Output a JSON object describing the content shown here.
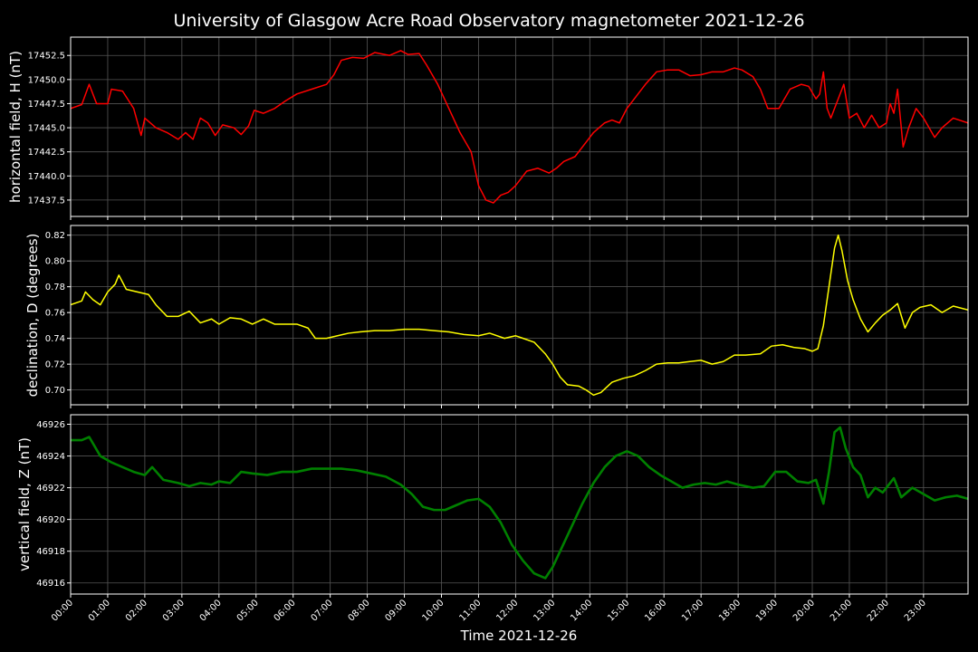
{
  "chart_data": {
    "type": "line",
    "title": "University of Glasgow Acre Road Observatory magnetometer 2021-12-26",
    "xlabel": "Time 2021-12-26",
    "x_ticks": [
      "00:00",
      "01:00",
      "02:00",
      "03:00",
      "04:00",
      "05:00",
      "06:00",
      "07:00",
      "08:00",
      "09:00",
      "10:00",
      "11:00",
      "12:00",
      "13:00",
      "14:00",
      "15:00",
      "16:00",
      "17:00",
      "18:00",
      "19:00",
      "20:00",
      "21:00",
      "22:00",
      "23:00"
    ],
    "xlim": [
      0,
      24.2
    ],
    "grid": true,
    "background": "#000000",
    "grid_color": "#555555",
    "panels": [
      {
        "ylabel": "horizontal field, H (nT)",
        "color": "#ff0000",
        "ylim": [
          17435.8,
          17454.4
        ],
        "ytick_values": [
          17437.5,
          17440.0,
          17442.5,
          17445.0,
          17447.5,
          17450.0,
          17452.5
        ],
        "ytick_labels": [
          "17437.5",
          "17440.0",
          "17442.5",
          "17445.0",
          "17447.5",
          "17450.0",
          "17452.5"
        ],
        "points": [
          [
            0,
            17447.0
          ],
          [
            0.3,
            17447.4
          ],
          [
            0.5,
            17449.5
          ],
          [
            0.7,
            17447.5
          ],
          [
            1.0,
            17447.5
          ],
          [
            1.1,
            17449.0
          ],
          [
            1.4,
            17448.8
          ],
          [
            1.7,
            17447.0
          ],
          [
            1.9,
            17444.2
          ],
          [
            2.0,
            17446.0
          ],
          [
            2.3,
            17445.0
          ],
          [
            2.6,
            17444.5
          ],
          [
            2.9,
            17443.8
          ],
          [
            3.1,
            17444.5
          ],
          [
            3.3,
            17443.8
          ],
          [
            3.5,
            17446.0
          ],
          [
            3.7,
            17445.5
          ],
          [
            3.9,
            17444.2
          ],
          [
            4.1,
            17445.3
          ],
          [
            4.4,
            17445.0
          ],
          [
            4.6,
            17444.3
          ],
          [
            4.8,
            17445.2
          ],
          [
            4.95,
            17446.8
          ],
          [
            5.2,
            17446.5
          ],
          [
            5.5,
            17447.0
          ],
          [
            5.8,
            17447.8
          ],
          [
            6.1,
            17448.5
          ],
          [
            6.5,
            17449.0
          ],
          [
            6.9,
            17449.5
          ],
          [
            7.1,
            17450.5
          ],
          [
            7.3,
            17452.0
          ],
          [
            7.6,
            17452.3
          ],
          [
            7.9,
            17452.2
          ],
          [
            8.2,
            17452.8
          ],
          [
            8.6,
            17452.5
          ],
          [
            8.9,
            17453.0
          ],
          [
            9.1,
            17452.6
          ],
          [
            9.4,
            17452.7
          ],
          [
            9.6,
            17451.5
          ],
          [
            9.9,
            17449.5
          ],
          [
            10.2,
            17447.0
          ],
          [
            10.5,
            17444.5
          ],
          [
            10.8,
            17442.5
          ],
          [
            11.0,
            17439.0
          ],
          [
            11.2,
            17437.5
          ],
          [
            11.4,
            17437.2
          ],
          [
            11.6,
            17438.0
          ],
          [
            11.8,
            17438.3
          ],
          [
            12.0,
            17439.0
          ],
          [
            12.3,
            17440.5
          ],
          [
            12.6,
            17440.8
          ],
          [
            12.9,
            17440.3
          ],
          [
            13.1,
            17440.8
          ],
          [
            13.3,
            17441.5
          ],
          [
            13.6,
            17442.0
          ],
          [
            13.9,
            17443.5
          ],
          [
            14.1,
            17444.5
          ],
          [
            14.4,
            17445.5
          ],
          [
            14.6,
            17445.8
          ],
          [
            14.8,
            17445.5
          ],
          [
            15.0,
            17447.0
          ],
          [
            15.3,
            17448.5
          ],
          [
            15.5,
            17449.5
          ],
          [
            15.8,
            17450.8
          ],
          [
            16.1,
            17451.0
          ],
          [
            16.4,
            17451.0
          ],
          [
            16.7,
            17450.4
          ],
          [
            17.0,
            17450.5
          ],
          [
            17.3,
            17450.8
          ],
          [
            17.6,
            17450.8
          ],
          [
            17.9,
            17451.2
          ],
          [
            18.1,
            17451.0
          ],
          [
            18.4,
            17450.3
          ],
          [
            18.6,
            17449.0
          ],
          [
            18.8,
            17447.0
          ],
          [
            19.1,
            17447.0
          ],
          [
            19.4,
            17449.0
          ],
          [
            19.7,
            17449.5
          ],
          [
            19.9,
            17449.3
          ],
          [
            20.1,
            17448.0
          ],
          [
            20.2,
            17448.5
          ],
          [
            20.3,
            17450.8
          ],
          [
            20.4,
            17447.0
          ],
          [
            20.5,
            17446.0
          ],
          [
            20.7,
            17448.0
          ],
          [
            20.85,
            17449.5
          ],
          [
            21.0,
            17446.0
          ],
          [
            21.2,
            17446.5
          ],
          [
            21.4,
            17445.0
          ],
          [
            21.6,
            17446.3
          ],
          [
            21.8,
            17445.0
          ],
          [
            22.0,
            17445.5
          ],
          [
            22.1,
            17447.5
          ],
          [
            22.2,
            17446.5
          ],
          [
            22.3,
            17449.0
          ],
          [
            22.45,
            17443.0
          ],
          [
            22.6,
            17445.0
          ],
          [
            22.8,
            17447.0
          ],
          [
            23.0,
            17446.0
          ],
          [
            23.3,
            17444.0
          ],
          [
            23.5,
            17445.0
          ],
          [
            23.8,
            17446.0
          ],
          [
            24.2,
            17445.5
          ]
        ]
      },
      {
        "ylabel": "declination, D (degrees)",
        "color": "#ffff00",
        "ylim": [
          0.6885,
          0.8275
        ],
        "ytick_values": [
          0.7,
          0.72,
          0.74,
          0.76,
          0.78,
          0.8,
          0.82
        ],
        "ytick_labels": [
          "0.70",
          "0.72",
          "0.74",
          "0.76",
          "0.78",
          "0.80",
          "0.82"
        ],
        "points": [
          [
            0,
            0.766
          ],
          [
            0.3,
            0.769
          ],
          [
            0.4,
            0.776
          ],
          [
            0.6,
            0.77
          ],
          [
            0.8,
            0.766
          ],
          [
            1.0,
            0.776
          ],
          [
            1.2,
            0.782
          ],
          [
            1.3,
            0.789
          ],
          [
            1.5,
            0.778
          ],
          [
            1.8,
            0.776
          ],
          [
            2.1,
            0.774
          ],
          [
            2.3,
            0.766
          ],
          [
            2.6,
            0.757
          ],
          [
            2.9,
            0.757
          ],
          [
            3.2,
            0.761
          ],
          [
            3.5,
            0.752
          ],
          [
            3.8,
            0.755
          ],
          [
            4.0,
            0.751
          ],
          [
            4.3,
            0.756
          ],
          [
            4.6,
            0.755
          ],
          [
            4.9,
            0.751
          ],
          [
            5.2,
            0.755
          ],
          [
            5.5,
            0.751
          ],
          [
            5.8,
            0.751
          ],
          [
            6.1,
            0.751
          ],
          [
            6.4,
            0.748
          ],
          [
            6.6,
            0.74
          ],
          [
            6.9,
            0.74
          ],
          [
            7.2,
            0.742
          ],
          [
            7.5,
            0.744
          ],
          [
            7.8,
            0.745
          ],
          [
            8.2,
            0.746
          ],
          [
            8.6,
            0.746
          ],
          [
            9.0,
            0.747
          ],
          [
            9.4,
            0.747
          ],
          [
            9.8,
            0.746
          ],
          [
            10.2,
            0.745
          ],
          [
            10.6,
            0.743
          ],
          [
            11.0,
            0.742
          ],
          [
            11.3,
            0.744
          ],
          [
            11.7,
            0.74
          ],
          [
            12.0,
            0.742
          ],
          [
            12.2,
            0.74
          ],
          [
            12.5,
            0.737
          ],
          [
            12.8,
            0.728
          ],
          [
            13.0,
            0.72
          ],
          [
            13.2,
            0.71
          ],
          [
            13.4,
            0.704
          ],
          [
            13.7,
            0.703
          ],
          [
            13.9,
            0.7
          ],
          [
            14.1,
            0.696
          ],
          [
            14.3,
            0.698
          ],
          [
            14.6,
            0.706
          ],
          [
            14.9,
            0.709
          ],
          [
            15.2,
            0.711
          ],
          [
            15.5,
            0.715
          ],
          [
            15.8,
            0.72
          ],
          [
            16.1,
            0.721
          ],
          [
            16.4,
            0.721
          ],
          [
            16.7,
            0.722
          ],
          [
            17.0,
            0.723
          ],
          [
            17.3,
            0.72
          ],
          [
            17.6,
            0.722
          ],
          [
            17.9,
            0.727
          ],
          [
            18.2,
            0.727
          ],
          [
            18.6,
            0.728
          ],
          [
            18.9,
            0.734
          ],
          [
            19.2,
            0.735
          ],
          [
            19.5,
            0.733
          ],
          [
            19.8,
            0.732
          ],
          [
            20.0,
            0.73
          ],
          [
            20.15,
            0.732
          ],
          [
            20.3,
            0.75
          ],
          [
            20.45,
            0.78
          ],
          [
            20.6,
            0.81
          ],
          [
            20.7,
            0.82
          ],
          [
            20.8,
            0.808
          ],
          [
            20.95,
            0.785
          ],
          [
            21.1,
            0.77
          ],
          [
            21.3,
            0.755
          ],
          [
            21.5,
            0.745
          ],
          [
            21.7,
            0.752
          ],
          [
            21.9,
            0.758
          ],
          [
            22.1,
            0.762
          ],
          [
            22.3,
            0.767
          ],
          [
            22.5,
            0.748
          ],
          [
            22.7,
            0.76
          ],
          [
            22.9,
            0.764
          ],
          [
            23.2,
            0.766
          ],
          [
            23.5,
            0.76
          ],
          [
            23.8,
            0.765
          ],
          [
            24.2,
            0.762
          ]
        ]
      },
      {
        "ylabel": "vertical field, Z (nT)",
        "color": "#008000",
        "ylim": [
          46915.3,
          46926.6
        ],
        "ytick_values": [
          46916,
          46918,
          46920,
          46922,
          46924,
          46926
        ],
        "ytick_labels": [
          "46916",
          "46918",
          "46920",
          "46922",
          "46924",
          "46926"
        ],
        "points": [
          [
            0,
            46925.0
          ],
          [
            0.3,
            46925.0
          ],
          [
            0.5,
            46925.2
          ],
          [
            0.8,
            46924.0
          ],
          [
            1.1,
            46923.6
          ],
          [
            1.4,
            46923.3
          ],
          [
            1.7,
            46923.0
          ],
          [
            2.0,
            46922.8
          ],
          [
            2.2,
            46923.3
          ],
          [
            2.5,
            46922.5
          ],
          [
            2.9,
            46922.3
          ],
          [
            3.2,
            46922.1
          ],
          [
            3.5,
            46922.3
          ],
          [
            3.8,
            46922.2
          ],
          [
            4.0,
            46922.4
          ],
          [
            4.3,
            46922.3
          ],
          [
            4.6,
            46923.0
          ],
          [
            4.9,
            46922.9
          ],
          [
            5.3,
            46922.8
          ],
          [
            5.7,
            46923.0
          ],
          [
            6.1,
            46923.0
          ],
          [
            6.5,
            46923.2
          ],
          [
            6.9,
            46923.2
          ],
          [
            7.3,
            46923.2
          ],
          [
            7.7,
            46923.1
          ],
          [
            8.1,
            46922.9
          ],
          [
            8.5,
            46922.7
          ],
          [
            8.9,
            46922.2
          ],
          [
            9.2,
            46921.6
          ],
          [
            9.5,
            46920.8
          ],
          [
            9.8,
            46920.6
          ],
          [
            10.1,
            46920.6
          ],
          [
            10.4,
            46920.9
          ],
          [
            10.7,
            46921.2
          ],
          [
            11.0,
            46921.3
          ],
          [
            11.3,
            46920.8
          ],
          [
            11.6,
            46919.8
          ],
          [
            11.9,
            46918.4
          ],
          [
            12.2,
            46917.4
          ],
          [
            12.5,
            46916.6
          ],
          [
            12.8,
            46916.3
          ],
          [
            13.0,
            46917.0
          ],
          [
            13.2,
            46918.0
          ],
          [
            13.5,
            46919.5
          ],
          [
            13.8,
            46921.0
          ],
          [
            14.1,
            46922.3
          ],
          [
            14.4,
            46923.3
          ],
          [
            14.7,
            46924.0
          ],
          [
            15.0,
            46924.3
          ],
          [
            15.3,
            46924.0
          ],
          [
            15.6,
            46923.3
          ],
          [
            15.9,
            46922.8
          ],
          [
            16.2,
            46922.4
          ],
          [
            16.5,
            46922.0
          ],
          [
            16.8,
            46922.2
          ],
          [
            17.1,
            46922.3
          ],
          [
            17.4,
            46922.2
          ],
          [
            17.7,
            46922.4
          ],
          [
            18.0,
            46922.2
          ],
          [
            18.4,
            46922.0
          ],
          [
            18.7,
            46922.1
          ],
          [
            19.0,
            46923.0
          ],
          [
            19.3,
            46923.0
          ],
          [
            19.6,
            46922.4
          ],
          [
            19.9,
            46922.3
          ],
          [
            20.1,
            46922.5
          ],
          [
            20.3,
            46921.0
          ],
          [
            20.45,
            46923.0
          ],
          [
            20.6,
            46925.5
          ],
          [
            20.75,
            46925.8
          ],
          [
            20.9,
            46924.5
          ],
          [
            21.1,
            46923.3
          ],
          [
            21.3,
            46922.8
          ],
          [
            21.5,
            46921.4
          ],
          [
            21.7,
            46922.0
          ],
          [
            21.9,
            46921.7
          ],
          [
            22.2,
            46922.6
          ],
          [
            22.4,
            46921.4
          ],
          [
            22.7,
            46922.0
          ],
          [
            23.0,
            46921.6
          ],
          [
            23.3,
            46921.2
          ],
          [
            23.6,
            46921.4
          ],
          [
            23.9,
            46921.5
          ],
          [
            24.2,
            46921.3
          ]
        ]
      }
    ]
  }
}
